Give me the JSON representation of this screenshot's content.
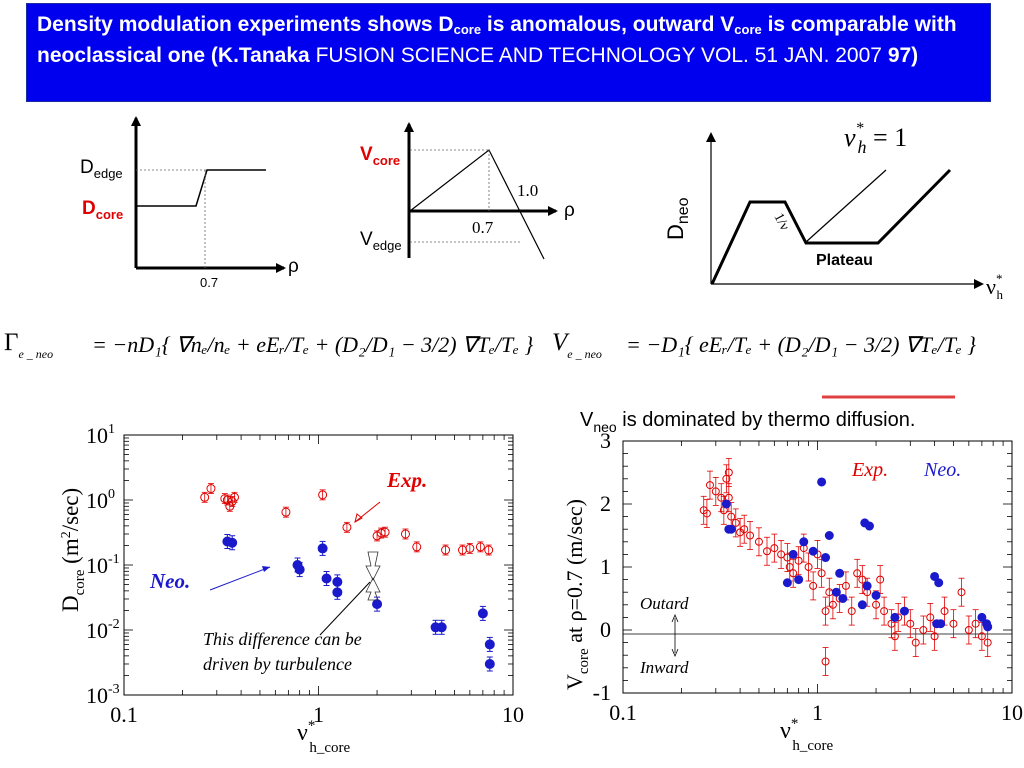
{
  "title": {
    "part1": "Density modulation experiments shows D",
    "sub1": "core",
    "part2": " is anomalous, outward V",
    "sub2": "core",
    "part3": " is comparable with neoclassical one (K.Tanaka",
    "part4": " FUSION SCIENCE AND TECHNOLOGY VOL. 51 JAN. 2007 ",
    "part5": "97)"
  },
  "colors": {
    "title_bg": "#0000ee",
    "exp": "#e00000",
    "neo": "#1a1acc",
    "highlight": "#e04040"
  },
  "schematic_d": {
    "d_edge": "D",
    "d_edge_sub": "edge",
    "d_core": "D",
    "d_core_sub": "core",
    "tick": "0.7",
    "axis": "ρ"
  },
  "schematic_v": {
    "v_core": "V",
    "v_core_sub": "core",
    "v_edge": "V",
    "v_edge_sub": "edge",
    "tick_07": "0.7",
    "tick_10": "1.0",
    "axis": "ρ"
  },
  "schematic_neo": {
    "ylabel": "D",
    "ylabel_sub": "neo",
    "xlabel": "ν",
    "xlabel_sup": "*",
    "xlabel_sub": "h",
    "eq_nu": "ν",
    "eq_sup": "*",
    "eq_sub": "h",
    "eq_rest": " = 1",
    "plateau": "Plateau",
    "slope_label": "1/ν"
  },
  "equations": {
    "gamma": "Γ",
    "gamma_sub": "e _ neo",
    "v": "V",
    "v_sub": "e _ neo",
    "eq1": "= −nD₁{ ∇nₑ/nₑ + eEᵣ/Tₑ + (D₂/D₁ − 3/2) ∇Tₑ/Tₑ }",
    "eq2": "= −D₁{ eEᵣ/Tₑ + (D₂/D₁ − 3/2) ∇Tₑ/Tₑ }"
  },
  "note": {
    "prefix": "V",
    "prefix_sub": "neo",
    "text": " is  dominated by thermo diffusion."
  },
  "chart_data": [
    {
      "type": "scatter",
      "title": "",
      "xlabel": "ν*h_core",
      "ylabel": "Dcore (m²/sec)",
      "xscale": "log",
      "yscale": "log",
      "xlim": [
        0.1,
        10
      ],
      "ylim": [
        0.001,
        10
      ],
      "x_ticks": [
        "0.1",
        "1",
        "10"
      ],
      "y_ticks": [
        "10^-3",
        "10^-2",
        "10^-1",
        "10^0",
        "10^1"
      ],
      "grid": false,
      "series": [
        {
          "name": "Exp.",
          "marker": "open-circle",
          "color": "#e00000",
          "points": [
            [
              0.26,
              1.1
            ],
            [
              0.28,
              1.5
            ],
            [
              0.33,
              1.05
            ],
            [
              0.34,
              1.0
            ],
            [
              0.35,
              0.8
            ],
            [
              0.36,
              0.95
            ],
            [
              0.37,
              1.1
            ],
            [
              0.68,
              0.65
            ],
            [
              1.05,
              1.2
            ],
            [
              1.4,
              0.38
            ],
            [
              2.0,
              0.28
            ],
            [
              2.1,
              0.31
            ],
            [
              2.2,
              0.32
            ],
            [
              2.8,
              0.3
            ],
            [
              3.2,
              0.19
            ],
            [
              4.5,
              0.17
            ],
            [
              5.5,
              0.17
            ],
            [
              6.0,
              0.18
            ],
            [
              6.8,
              0.19
            ],
            [
              7.5,
              0.17
            ]
          ]
        },
        {
          "name": "Neo.",
          "marker": "filled-circle",
          "color": "#1a1acc",
          "points": [
            [
              0.34,
              0.23
            ],
            [
              0.36,
              0.22
            ],
            [
              0.78,
              0.1
            ],
            [
              0.8,
              0.085
            ],
            [
              1.05,
              0.18
            ],
            [
              1.1,
              0.062
            ],
            [
              1.25,
              0.055
            ],
            [
              1.25,
              0.038
            ],
            [
              2.0,
              0.025
            ],
            [
              4.0,
              0.011
            ],
            [
              4.3,
              0.011
            ],
            [
              7.0,
              0.018
            ],
            [
              7.6,
              0.006
            ],
            [
              7.6,
              0.003
            ]
          ]
        }
      ],
      "annotations": [
        "Exp.",
        "Neo.",
        "This difference can be",
        "driven by turbulence"
      ]
    },
    {
      "type": "scatter",
      "title": "",
      "xlabel": "ν*h_core",
      "ylabel": "Vcore at ρ=0.7 (m/sec)",
      "xscale": "log",
      "yscale": "linear",
      "xlim": [
        0.1,
        10
      ],
      "ylim": [
        -1,
        3
      ],
      "x_ticks": [
        "0.1",
        "1",
        "10"
      ],
      "y_ticks": [
        "-1",
        "0",
        "1",
        "2",
        "3"
      ],
      "grid": false,
      "series": [
        {
          "name": "Exp.",
          "marker": "open-circle",
          "color": "#e00000",
          "points": [
            [
              0.26,
              1.9
            ],
            [
              0.27,
              1.85
            ],
            [
              0.28,
              2.3
            ],
            [
              0.3,
              2.2
            ],
            [
              0.32,
              2.1
            ],
            [
              0.33,
              1.9
            ],
            [
              0.34,
              2.4
            ],
            [
              0.35,
              2.5
            ],
            [
              0.35,
              2.1
            ],
            [
              0.36,
              1.8
            ],
            [
              0.38,
              1.7
            ],
            [
              0.4,
              1.55
            ],
            [
              0.42,
              1.6
            ],
            [
              0.45,
              1.5
            ],
            [
              0.5,
              1.4
            ],
            [
              0.55,
              1.25
            ],
            [
              0.6,
              1.3
            ],
            [
              0.65,
              1.2
            ],
            [
              0.7,
              1.15
            ],
            [
              0.72,
              1.0
            ],
            [
              0.75,
              0.9
            ],
            [
              0.8,
              1.1
            ],
            [
              0.85,
              1.3
            ],
            [
              0.9,
              1.0
            ],
            [
              0.95,
              0.7
            ],
            [
              1.0,
              1.2
            ],
            [
              1.05,
              0.9
            ],
            [
              1.1,
              0.3
            ],
            [
              1.15,
              0.6
            ],
            [
              1.2,
              0.4
            ],
            [
              1.3,
              0.5
            ],
            [
              1.4,
              0.7
            ],
            [
              1.5,
              0.3
            ],
            [
              1.6,
              0.9
            ],
            [
              1.7,
              0.8
            ],
            [
              1.8,
              0.6
            ],
            [
              2.0,
              0.4
            ],
            [
              2.1,
              0.8
            ],
            [
              2.2,
              0.3
            ],
            [
              2.4,
              0.1
            ],
            [
              2.5,
              -0.1
            ],
            [
              2.6,
              0.2
            ],
            [
              2.8,
              0.3
            ],
            [
              3.0,
              0.1
            ],
            [
              3.2,
              -0.2
            ],
            [
              3.5,
              0.0
            ],
            [
              3.8,
              0.2
            ],
            [
              4.0,
              -0.1
            ],
            [
              4.5,
              0.3
            ],
            [
              5.0,
              0.1
            ],
            [
              5.5,
              0.6
            ],
            [
              6.0,
              0.0
            ],
            [
              6.5,
              0.1
            ],
            [
              7.0,
              -0.1
            ],
            [
              7.5,
              -0.2
            ],
            [
              1.1,
              -0.5
            ]
          ]
        },
        {
          "name": "Neo.",
          "marker": "filled-circle",
          "color": "#1a1acc",
          "points": [
            [
              0.34,
              2.0
            ],
            [
              0.35,
              1.6
            ],
            [
              0.36,
              1.6
            ],
            [
              0.7,
              0.75
            ],
            [
              0.75,
              1.2
            ],
            [
              0.8,
              0.8
            ],
            [
              0.85,
              1.4
            ],
            [
              0.95,
              1.25
            ],
            [
              1.05,
              2.35
            ],
            [
              1.1,
              1.15
            ],
            [
              1.15,
              1.5
            ],
            [
              1.25,
              0.6
            ],
            [
              1.3,
              0.9
            ],
            [
              1.35,
              0.5
            ],
            [
              1.7,
              0.4
            ],
            [
              1.75,
              1.7
            ],
            [
              1.85,
              1.65
            ],
            [
              1.8,
              0.7
            ],
            [
              2.0,
              0.55
            ],
            [
              2.5,
              0.2
            ],
            [
              2.8,
              0.3
            ],
            [
              4.0,
              0.85
            ],
            [
              4.2,
              0.75
            ],
            [
              4.1,
              0.1
            ],
            [
              4.3,
              0.1
            ],
            [
              7.0,
              0.2
            ],
            [
              7.4,
              0.1
            ],
            [
              7.5,
              0.05
            ]
          ]
        }
      ],
      "annotations": [
        "Exp.",
        "Neo.",
        "Outard",
        "Inward"
      ]
    }
  ]
}
